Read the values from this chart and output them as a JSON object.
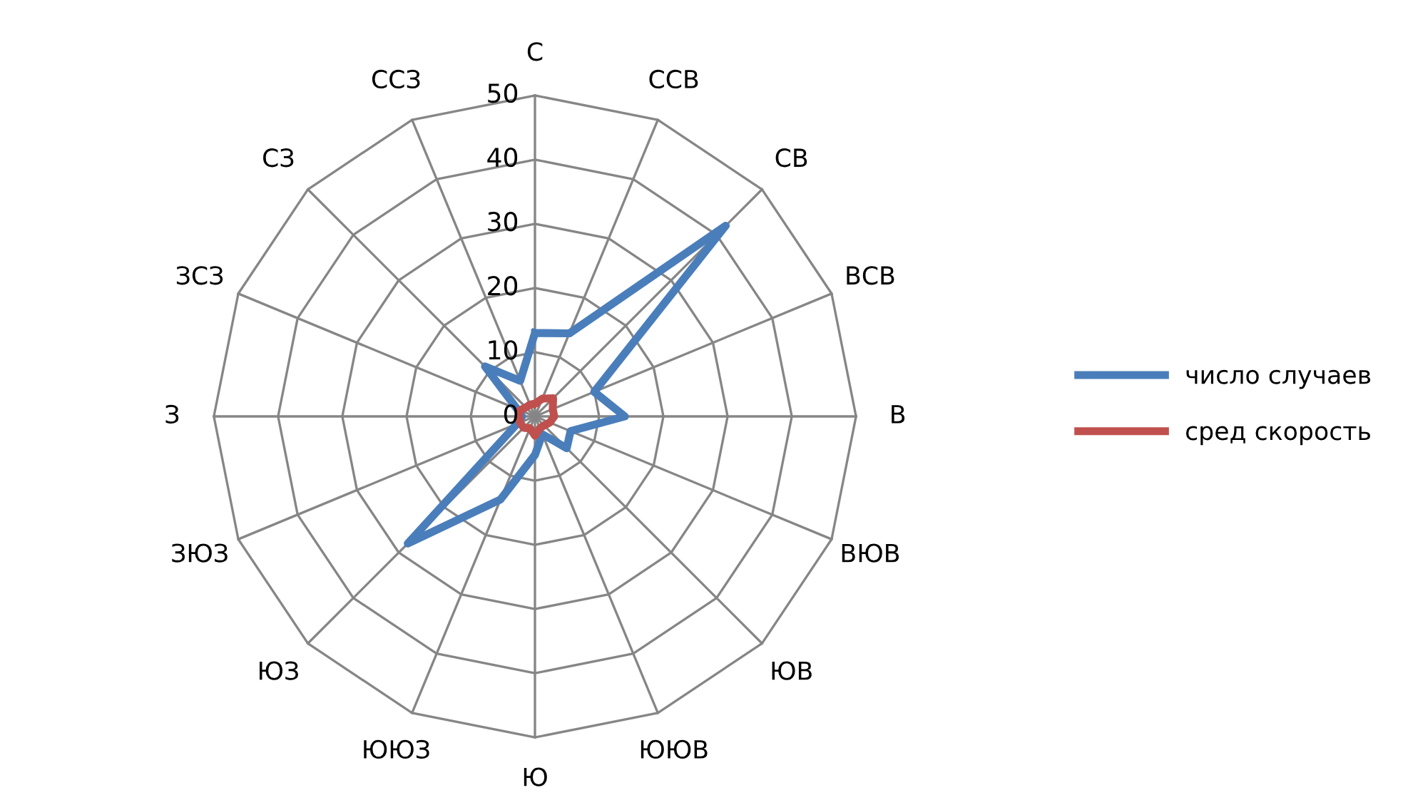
{
  "chart_data": {
    "type": "radar",
    "categories": [
      "С",
      "ССВ",
      "СВ",
      "ВСВ",
      "В",
      "ВЮВ",
      "ЮВ",
      "ЮЮВ",
      "Ю",
      "ЮЮЗ",
      "ЮЗ",
      "ЗЮЗ",
      "З",
      "ЗСЗ",
      "СЗ",
      "ССЗ"
    ],
    "series": [
      {
        "name": "число случаев",
        "color": "#4a7ebb",
        "values": [
          13,
          14,
          42,
          10,
          14,
          6,
          7,
          3,
          6,
          14,
          28,
          3,
          2,
          3,
          11,
          6
        ]
      },
      {
        "name": "сред скорость",
        "color": "#c0504d",
        "values": [
          2,
          3,
          4,
          3,
          3,
          2.5,
          2,
          2,
          3,
          2,
          2.5,
          2.5,
          2.5,
          2.5,
          2,
          2
        ]
      }
    ],
    "ylim": [
      0,
      50
    ],
    "yticks": [
      0,
      10,
      20,
      30,
      40,
      50
    ],
    "grid": true,
    "legend": "right",
    "marker": "none",
    "line_style": "solid"
  }
}
